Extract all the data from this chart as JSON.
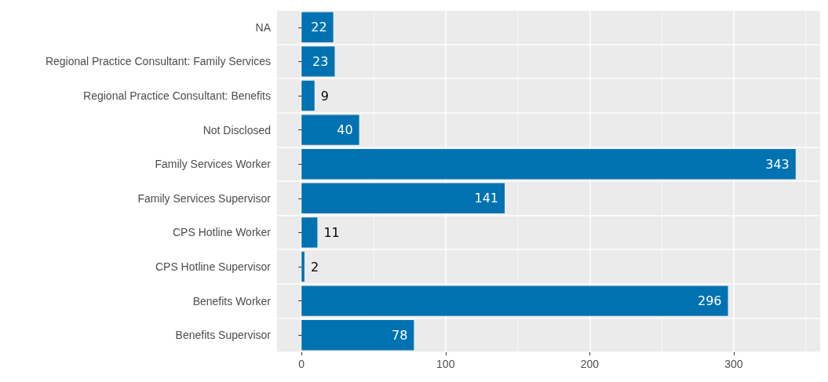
{
  "chart_data": {
    "type": "bar",
    "orientation": "horizontal",
    "categories": [
      "NA",
      "Regional Practice Consultant: Family Services",
      "Regional Practice Consultant: Benefits",
      "Not Disclosed",
      "Family Services Worker",
      "Family Services Supervisor",
      "CPS Hotline Worker",
      "CPS Hotline Supervisor",
      "Benefits Worker",
      "Benefits Supervisor"
    ],
    "values": [
      22,
      23,
      9,
      40,
      343,
      141,
      11,
      2,
      296,
      78
    ],
    "color": "#0072b2",
    "xlim": [
      -17,
      360
    ],
    "xticks": [
      0,
      100,
      200,
      300
    ],
    "grid": true,
    "data_labels": true
  }
}
